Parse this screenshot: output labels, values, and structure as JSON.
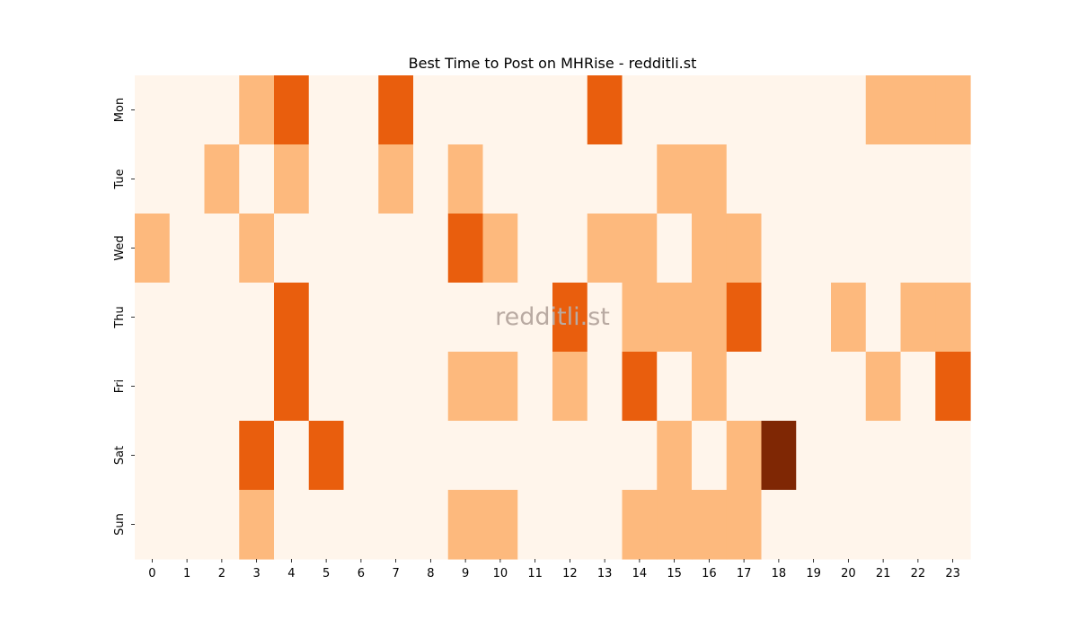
{
  "chart_data": {
    "type": "heatmap",
    "title": "Best Time to Post on MHRise - redditli.st",
    "xlabel": "",
    "ylabel": "",
    "x_categories": [
      "0",
      "1",
      "2",
      "3",
      "4",
      "5",
      "6",
      "7",
      "8",
      "9",
      "10",
      "11",
      "12",
      "13",
      "14",
      "15",
      "16",
      "17",
      "18",
      "19",
      "20",
      "21",
      "22",
      "23"
    ],
    "y_categories": [
      "Mon",
      "Tue",
      "Wed",
      "Thu",
      "Fri",
      "Sat",
      "Sun"
    ],
    "values": [
      [
        0,
        0,
        0,
        1,
        2,
        0,
        0,
        2,
        0,
        0,
        0,
        0,
        0,
        2,
        0,
        0,
        0,
        0,
        0,
        0,
        0,
        1,
        1,
        1
      ],
      [
        0,
        0,
        1,
        0,
        1,
        0,
        0,
        1,
        0,
        1,
        0,
        0,
        0,
        0,
        0,
        1,
        1,
        0,
        0,
        0,
        0,
        0,
        0,
        0
      ],
      [
        1,
        0,
        0,
        1,
        0,
        0,
        0,
        0,
        0,
        2,
        1,
        0,
        0,
        1,
        1,
        0,
        1,
        1,
        0,
        0,
        0,
        0,
        0,
        0
      ],
      [
        0,
        0,
        0,
        0,
        2,
        0,
        0,
        0,
        0,
        0,
        0,
        0,
        2,
        0,
        1,
        1,
        1,
        2,
        0,
        0,
        1,
        0,
        1,
        1
      ],
      [
        0,
        0,
        0,
        0,
        2,
        0,
        0,
        0,
        0,
        1,
        1,
        0,
        1,
        0,
        2,
        0,
        1,
        0,
        0,
        0,
        0,
        1,
        0,
        2
      ],
      [
        0,
        0,
        0,
        2,
        0,
        2,
        0,
        0,
        0,
        0,
        0,
        0,
        0,
        0,
        0,
        1,
        0,
        1,
        3,
        0,
        0,
        0,
        0,
        0
      ],
      [
        0,
        0,
        0,
        1,
        0,
        0,
        0,
        0,
        0,
        1,
        1,
        0,
        0,
        0,
        1,
        1,
        1,
        1,
        0,
        0,
        0,
        0,
        0,
        0
      ]
    ],
    "colorscale": [
      "#fff5eb",
      "#fdb97d",
      "#e95e0d",
      "#7f2704"
    ],
    "colorbar": false,
    "watermark": "redditli.st"
  }
}
